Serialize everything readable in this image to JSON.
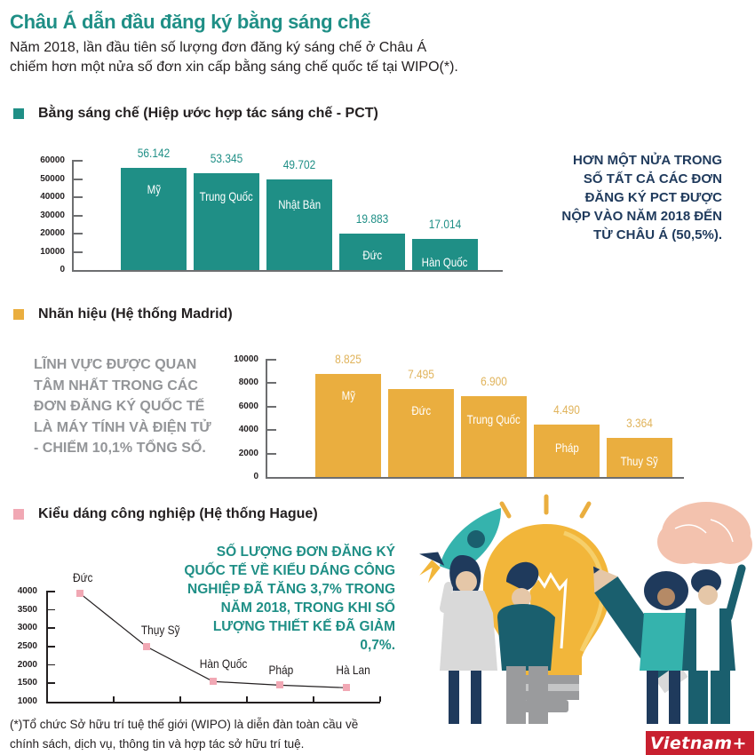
{
  "header": {
    "title": "Châu Á dẫn đầu đăng ký bằng sáng chế",
    "subtitle_line1": "Năm 2018, lần đầu tiên số lượng đơn đăng ký sáng chế ở Châu Á",
    "subtitle_line2": "chiếm hơn một nửa số đơn xin cấp bằng sáng chế quốc tế tại WIPO(*)."
  },
  "colors": {
    "teal": "#1f8f86",
    "gold": "#eaae3f",
    "pink": "#f1a8b4",
    "navy": "#1f3a5c",
    "gray_text": "#939598",
    "brand_red": "#c8202f"
  },
  "sections": {
    "pct": {
      "legend": "Bằng sáng chế (Hiệp ước hợp tác sáng chế - PCT)",
      "callout": [
        "HƠN MỘT NỬA TRONG",
        "SỐ TẤT CẢ CÁC ĐƠN",
        "ĐĂNG KÝ PCT ĐƯỢC",
        "NỘP VÀO NĂM 2018 ĐẾN",
        "TỪ CHÂU Á (50,5%)."
      ]
    },
    "madrid": {
      "legend": "Nhãn hiệu (Hệ thống Madrid)",
      "callout": [
        "LĨNH VỰC ĐƯỢC QUAN",
        "TÂM NHẤT TRONG CÁC",
        "ĐƠN ĐĂNG KÝ QUỐC TẾ",
        "LÀ MÁY TÍNH VÀ ĐIỆN TỬ",
        "- CHIẾM 10,1% TỔNG SỐ."
      ]
    },
    "hague": {
      "legend": "Kiểu dáng công nghiệp (Hệ thống Hague)",
      "callout": [
        "SỐ LƯỢNG ĐƠN ĐĂNG KÝ",
        "QUỐC TẾ VỀ KIỂU DÁNG CÔNG",
        "NGHIỆP ĐÃ TĂNG 3,7% TRONG",
        "NĂM 2018, TRONG KHI SỐ",
        "LƯỢNG THIẾT KẾ ĐÃ GIẢM",
        "0,7%."
      ]
    }
  },
  "chart_data": [
    {
      "type": "bar",
      "title": "Bằng sáng chế (Hiệp ước hợp tác sáng chế - PCT)",
      "categories": [
        "Mỹ",
        "Trung Quốc",
        "Nhật Bản",
        "Đức",
        "Hàn Quốc"
      ],
      "values": [
        56142,
        53345,
        49702,
        19883,
        17014
      ],
      "value_labels": [
        "56.142",
        "53.345",
        "49.702",
        "19.883",
        "17.014"
      ],
      "yticks": [
        "60000",
        "50000",
        "40000",
        "30000",
        "20000",
        "10000",
        "0"
      ],
      "ylim": [
        0,
        60000
      ],
      "xlabel": "",
      "ylabel": "",
      "color": "#1f8f86",
      "grid": false
    },
    {
      "type": "bar",
      "title": "Nhãn hiệu (Hệ thống Madrid)",
      "categories": [
        "Mỹ",
        "Đức",
        "Trung Quốc",
        "Pháp",
        "Thuy Sỹ"
      ],
      "values": [
        8825,
        7495,
        6900,
        4490,
        3364
      ],
      "value_labels": [
        "8.825",
        "7.495",
        "6.900",
        "4.490",
        "3.364"
      ],
      "yticks": [
        "10000",
        "8000",
        "6000",
        "4000",
        "2000",
        "0"
      ],
      "ylim": [
        0,
        10000
      ],
      "xlabel": "",
      "ylabel": "",
      "color": "#eaae3f",
      "grid": false
    },
    {
      "type": "line",
      "title": "Kiểu dáng công nghiệp (Hệ thống Hague)",
      "categories": [
        "Đức",
        "Thụy Sỹ",
        "Hàn Quốc",
        "Pháp",
        "Hà Lan"
      ],
      "values": [
        3950,
        2500,
        1550,
        1450,
        1380
      ],
      "yticks": [
        "4000",
        "3500",
        "3000",
        "2500",
        "2000",
        "1500",
        "1000"
      ],
      "ylim": [
        1000,
        4000
      ],
      "xlabel": "",
      "ylabel": "",
      "marker_color": "#f1a8b4",
      "line_color": "#231f20",
      "grid": false
    }
  ],
  "footnote": {
    "line1": "(*)Tổ chức Sở hữu trí tuệ thế giới (WIPO) là diễn đàn toàn cầu về",
    "line2": "chính sách, dịch vụ, thông tin và hợp tác sở hữu trí tuệ."
  },
  "brand": {
    "logo_text": "Vietnam+"
  }
}
